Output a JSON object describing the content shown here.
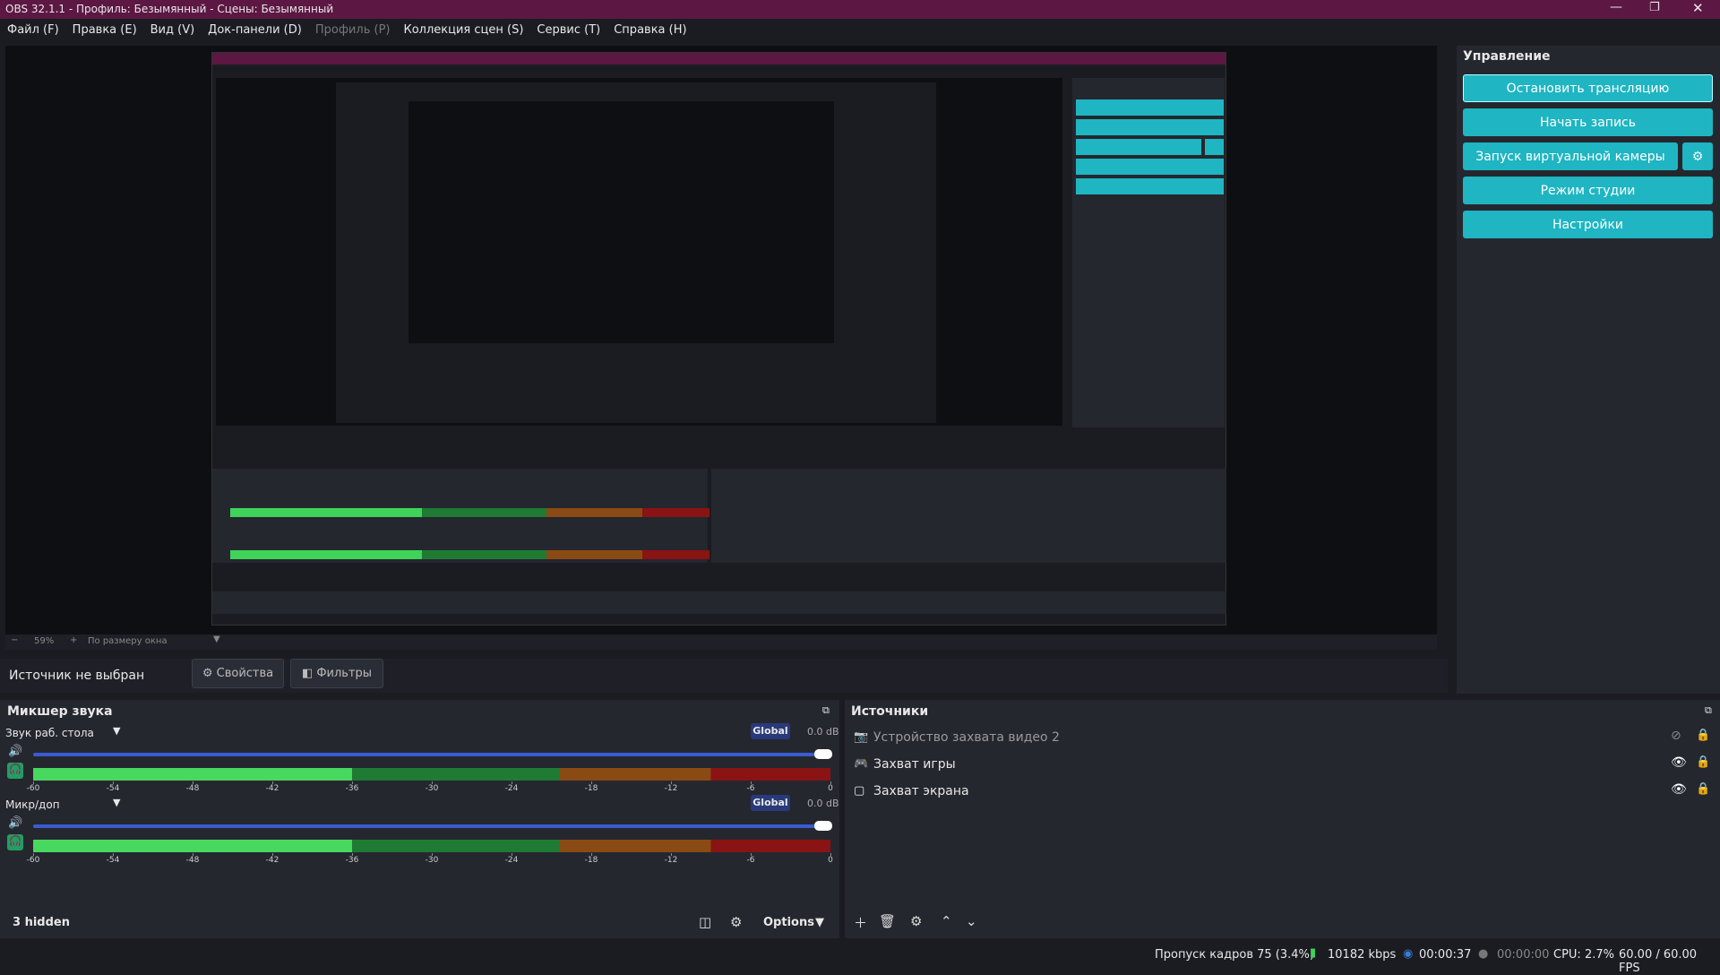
{
  "window": {
    "title": "OBS 32.1.1 - Профиль: Безымянный - Сцены: Безымянный"
  },
  "menu": [
    {
      "label": "Файл (F)",
      "disabled": false
    },
    {
      "label": "Правка (E)",
      "disabled": false
    },
    {
      "label": "Вид (V)",
      "disabled": false
    },
    {
      "label": "Док-панели (D)",
      "disabled": false
    },
    {
      "label": "Профиль (P)",
      "disabled": true
    },
    {
      "label": "Коллекция сцен (S)",
      "disabled": false
    },
    {
      "label": "Сервис (T)",
      "disabled": false
    },
    {
      "label": "Справка (H)",
      "disabled": false
    }
  ],
  "preview": {
    "zoom": "59%",
    "scale_mode": "По размеру окна"
  },
  "controls": {
    "title": "Управление",
    "buttons": [
      "Остановить трансляцию",
      "Начать запись",
      "Запуск виртуальной камеры",
      "Режим студии",
      "Настройки"
    ]
  },
  "source_bar": {
    "status": "Источник не выбран",
    "properties": "Свойства",
    "filters": "Фильтры"
  },
  "mixer": {
    "title": "Микшер звука",
    "channels": [
      {
        "name": "Звук раб. стола",
        "mode": "Global",
        "gain": "0.0 dB"
      },
      {
        "name": "Микр/доп",
        "mode": "Global",
        "gain": "0.0 dB"
      }
    ],
    "scale": [
      -60,
      -54,
      -48,
      -42,
      -36,
      -30,
      -24,
      -18,
      -12,
      -6,
      0
    ],
    "hidden": "3 hidden",
    "options": "Options"
  },
  "sources": {
    "title": "Источники",
    "items": [
      {
        "name": "Устройство захвата видео 2",
        "visible": false
      },
      {
        "name": "Захват игры",
        "visible": true
      },
      {
        "name": "Захват экрана",
        "visible": true
      }
    ]
  },
  "status": {
    "dropped": "Пропуск кадров 75 (3.4%)",
    "bitrate": "10182 kbps",
    "stream_time": "00:00:37",
    "record_time": "00:00:00",
    "cpu": "CPU: 2.7%",
    "fps": "60.00 / 60.00 FPS"
  }
}
